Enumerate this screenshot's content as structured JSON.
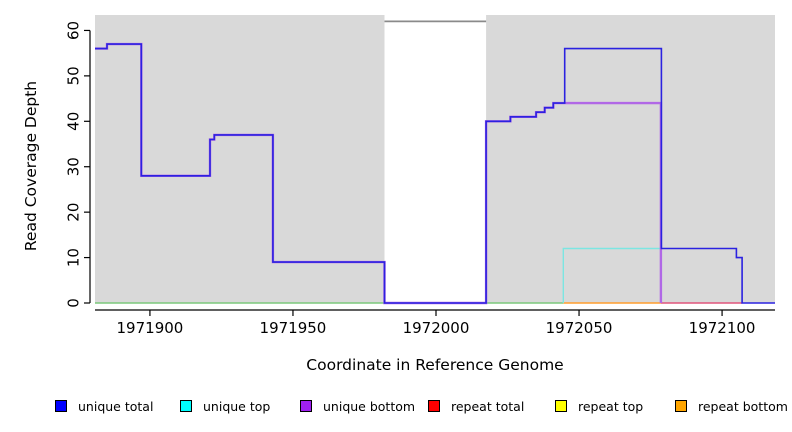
{
  "figure": {
    "x_title": "Coordinate in Reference Genome",
    "y_title": "Read Coverage Depth"
  },
  "chart_data": {
    "type": "line",
    "subtype": "step-coverage-plot",
    "title": "",
    "xlabel": "Coordinate in Reference Genome",
    "ylabel": "Read Coverage Depth",
    "x_range": [
      1971880.8,
      1972118.5
    ],
    "y_top_value": 63.4,
    "ylim": [
      0,
      62
    ],
    "grid": false,
    "panel_color": "#d9d9d9",
    "masked_region": {
      "x0": 1971982,
      "x1": 1972017.5,
      "color": "#ffffff"
    },
    "x_ticks": [
      {
        "value": 1971900,
        "label": "1971900"
      },
      {
        "value": 1971950,
        "label": "1971950"
      },
      {
        "value": 1972000,
        "label": "1972000"
      },
      {
        "value": 1972050,
        "label": "1972050"
      },
      {
        "value": 1972100,
        "label": "1972100"
      }
    ],
    "y_ticks": [
      {
        "value": 0,
        "label": "0"
      },
      {
        "value": 10,
        "label": "10"
      },
      {
        "value": 20,
        "label": "20"
      },
      {
        "value": 30,
        "label": "30"
      },
      {
        "value": 40,
        "label": "40"
      },
      {
        "value": 50,
        "label": "50"
      },
      {
        "value": 60,
        "label": "60"
      }
    ],
    "series": [
      {
        "name": "zero-baseline-green",
        "color": "#7cc87c",
        "width": 1.4,
        "steps": [
          [
            1971880.8,
            0
          ]
        ],
        "end": 1972044.5
      },
      {
        "name": "repeat-bottom",
        "color": "#ff9e2e",
        "width": 1.4,
        "steps": [
          [
            1972044.5,
            0
          ]
        ],
        "end": 1972078.6
      },
      {
        "name": "repeat-total",
        "color": "#e0557c",
        "width": 1.4,
        "steps": [
          [
            1972078.6,
            0
          ]
        ],
        "end": 1972107
      },
      {
        "name": "masked-region-total",
        "color": "#8a8a8a",
        "width": 1.8,
        "steps": [
          [
            1971982,
            62
          ]
        ],
        "end": 1972017.5
      },
      {
        "name": "unique-top",
        "color": "#7ce6e2",
        "width": 1.4,
        "steps": [
          [
            1972044.5,
            0
          ],
          [
            1972044.5,
            12
          ],
          [
            1972078.6,
            0
          ]
        ],
        "end": 1972078.6
      },
      {
        "name": "unique-bottom",
        "color": "#b168e6",
        "width": 2.4,
        "steps": [
          [
            1971880.8,
            56
          ],
          [
            1971885,
            57
          ],
          [
            1971897,
            28
          ],
          [
            1971921,
            36
          ],
          [
            1971922.5,
            37
          ],
          [
            1971943,
            9
          ],
          [
            1971982,
            0
          ],
          [
            1972017.5,
            40
          ],
          [
            1972026,
            41
          ],
          [
            1972035,
            42
          ],
          [
            1972038,
            43
          ],
          [
            1972041,
            44
          ],
          [
            1972078.6,
            0
          ]
        ],
        "end": 1972078.6
      },
      {
        "name": "unique-total",
        "color": "#2b22e0",
        "width": 1.6,
        "steps": [
          [
            1971880.8,
            56
          ],
          [
            1971885,
            57
          ],
          [
            1971897,
            28
          ],
          [
            1971921,
            36
          ],
          [
            1971922.5,
            37
          ],
          [
            1971943,
            9
          ],
          [
            1971982,
            0
          ],
          [
            1972017.5,
            40
          ],
          [
            1972026,
            41
          ],
          [
            1972035,
            42
          ],
          [
            1972038,
            43
          ],
          [
            1972041,
            44
          ],
          [
            1972045,
            56
          ],
          [
            1972078.8,
            12
          ],
          [
            1972105,
            10
          ],
          [
            1972107,
            0
          ]
        ],
        "end": 1972118.5
      }
    ],
    "legend": {
      "position": "bottom",
      "items": [
        {
          "label": "unique total",
          "color": "#0000ff"
        },
        {
          "label": "unique top",
          "color": "#00ffff"
        },
        {
          "label": "unique bottom",
          "color": "#a020f0"
        },
        {
          "label": "repeat total",
          "color": "#ff0000"
        },
        {
          "label": "repeat top",
          "color": "#ffff00"
        },
        {
          "label": "repeat bottom",
          "color": "#ffa500"
        }
      ]
    }
  }
}
